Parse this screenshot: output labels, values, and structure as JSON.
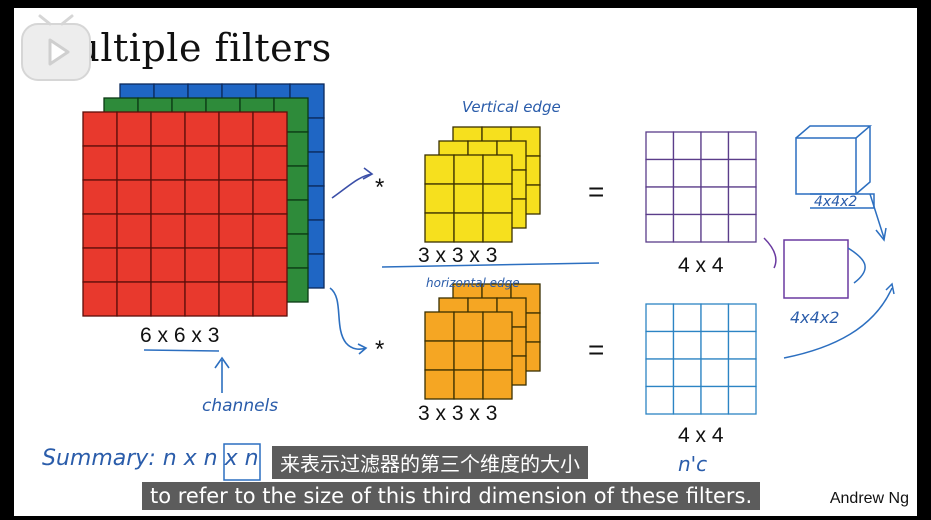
{
  "slide": {
    "title": "Multiple filters",
    "author": "Andrew Ng"
  },
  "input": {
    "label": "6 x 6 x 3",
    "size": 6,
    "channels": 3,
    "colors": [
      "#e8392d",
      "#2e8b3a",
      "#1f66c4"
    ]
  },
  "filter1": {
    "label": "3 x 3 x 3",
    "color": "#f6e01e",
    "note": "Vertical edge"
  },
  "filter2": {
    "label": "3 x 3 x 3",
    "color": "#f5a623",
    "note": "horizontal edge"
  },
  "output1": {
    "label": "4 x 4"
  },
  "output2": {
    "label": "4 x 4"
  },
  "stack": {
    "label_top": "4x4x2",
    "label_mid": "4x4x2"
  },
  "annotations": {
    "channels": "channels",
    "summary": "Summary:  n x n x n",
    "summary_tail": "n'c",
    "operator": "*",
    "equals": "="
  },
  "subtitles": {
    "zh": "来表示过滤器的第三个维度的大小",
    "en": "to refer to the size of this third dimension of these filters."
  },
  "icons": {
    "player": "bilibili-tv-icon"
  }
}
